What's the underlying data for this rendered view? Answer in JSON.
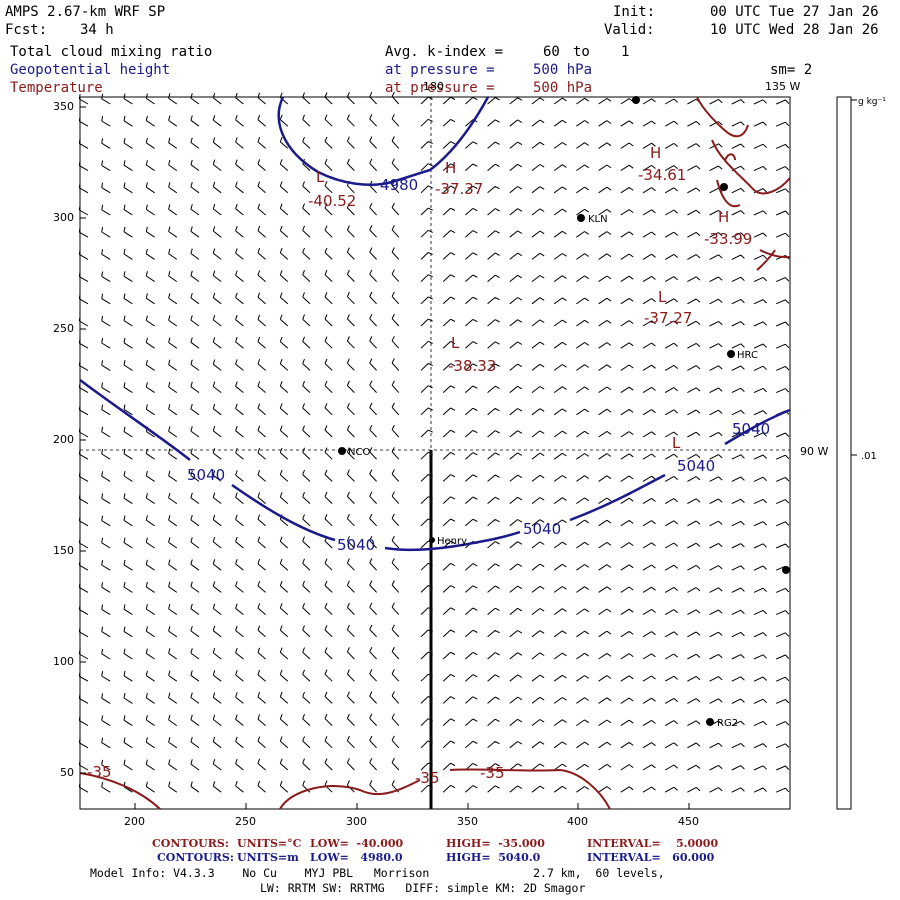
{
  "header": {
    "model": "AMPS 2.67-km WRF SP",
    "fcst_label": "Fcst:",
    "fcst_value": "34 h",
    "init_label": "Init:",
    "init_value": "00 UTC Tue 27 Jan 26",
    "valid_label": "Valid:",
    "valid_value": "10 UTC Wed 28 Jan 26",
    "field1": "Total cloud mixing ratio",
    "field2": "Geopotential height",
    "field3": "Temperature",
    "avg_label": "Avg. k-index =",
    "avg_from": "60",
    "avg_to_label": "to",
    "avg_to": "1",
    "pressure_label1": "at pressure =",
    "pressure_value1": "500 hPa",
    "pressure_label2": "at pressure =",
    "pressure_value2": "500 hPa",
    "sm": "sm= 2"
  },
  "colorbar": {
    "unit": "g kg⁻¹",
    "value": ".01"
  },
  "axes": {
    "x_ticks": [
      "200",
      "250",
      "300",
      "350",
      "400",
      "450"
    ],
    "y_ticks": [
      "350",
      "300",
      "250",
      "200",
      "150",
      "100",
      "50"
    ]
  },
  "map_labels": {
    "meridian_top": "180",
    "meridian_135": "135 W",
    "meridian_90": "90 W",
    "stations": [
      "NCO",
      "KLN",
      "HRC",
      "RG2",
      "Henry"
    ]
  },
  "contours": {
    "height_labels": [
      "4980",
      "5040",
      "5040",
      "5040",
      "5040",
      "5040"
    ],
    "temp_labels": [
      "-40.52",
      "-37.37",
      "-34.61",
      "-33.99",
      "-37.27",
      "-38.33",
      "-35",
      "-35",
      "-35"
    ],
    "high_low": [
      "L",
      "H",
      "H",
      "H",
      "L",
      "L",
      "L"
    ]
  },
  "footer": {
    "line1_label": "CONTOURS:",
    "line1_units": "UNITS=°C",
    "line1_low": "LOW=  -40.000",
    "line1_high": "HIGH=  -35.000",
    "line1_interval": "INTERVAL=    5.0000",
    "line2_label": "CONTOURS:",
    "line2_units": "UNITS=m",
    "line2_low": "LOW=   4980.0",
    "line2_high": "HIGH=  5040.0",
    "line2_interval": "INTERVAL=   60.000",
    "model_info": "Model Info: V4.3.3    No Cu    MYJ PBL   Morrison               2.7 km,  60 levels,",
    "model_info2": "LW: RRTM SW: RRTMG   DIFF: simple KM: 2D Smagor"
  },
  "colors": {
    "height_contour": "#1a1a8c",
    "temp_contour": "#8b1a1a",
    "barb": "#000000"
  }
}
